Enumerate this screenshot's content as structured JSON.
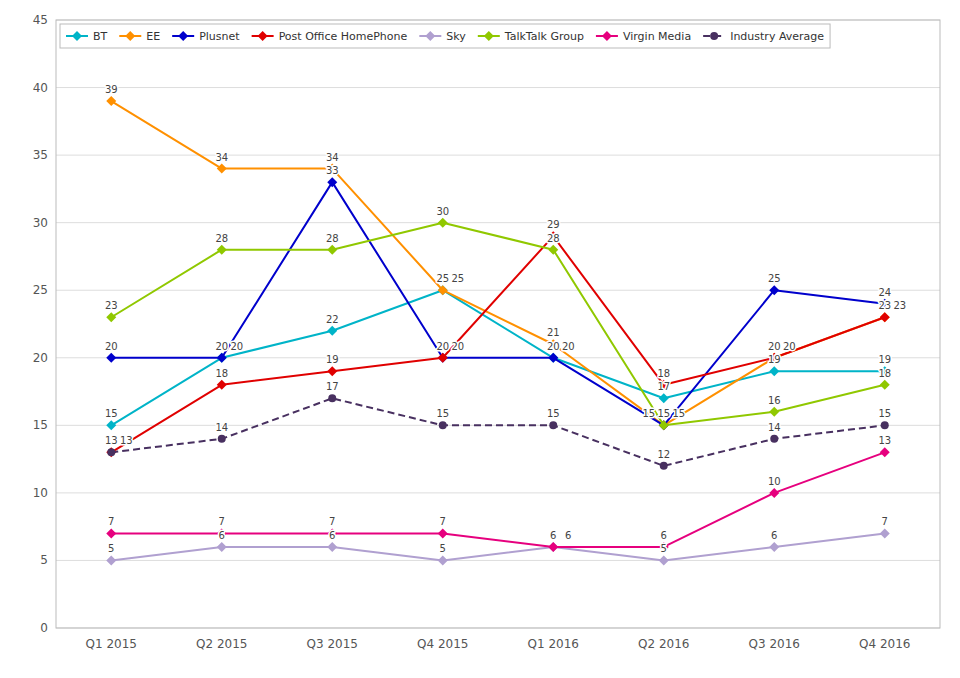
{
  "chart_data": {
    "type": "line",
    "categories": [
      "Q1 2015",
      "Q2 2015",
      "Q3 2015",
      "Q4 2015",
      "Q1 2016",
      "Q2 2016",
      "Q3 2016",
      "Q4 2016"
    ],
    "series": [
      {
        "name": "BT",
        "color": "#00b4c8",
        "marker": "diamond",
        "line_style": "solid",
        "values": [
          15,
          20,
          22,
          25,
          20,
          17,
          19,
          19
        ]
      },
      {
        "name": "EE",
        "color": "#ff9000",
        "marker": "diamond",
        "line_style": "solid",
        "values": [
          39,
          34,
          34,
          25,
          21,
          15,
          20,
          23
        ]
      },
      {
        "name": "Plusnet",
        "color": "#0000cc",
        "marker": "diamond",
        "line_style": "solid",
        "values": [
          20,
          20,
          33,
          20,
          20,
          15,
          25,
          24
        ]
      },
      {
        "name": "Post Office HomePhone",
        "color": "#e00000",
        "marker": "diamond",
        "line_style": "solid",
        "values": [
          13,
          18,
          19,
          20,
          29,
          18,
          20,
          23
        ]
      },
      {
        "name": "Sky",
        "color": "#b0a0d0",
        "marker": "diamond",
        "line_style": "solid",
        "values": [
          5,
          6,
          6,
          5,
          6,
          5,
          6,
          7
        ]
      },
      {
        "name": "TalkTalk Group",
        "color": "#90c800",
        "marker": "diamond",
        "line_style": "solid",
        "values": [
          23,
          28,
          28,
          30,
          28,
          15,
          16,
          18
        ]
      },
      {
        "name": "Virgin Media",
        "color": "#e6007e",
        "marker": "diamond",
        "line_style": "solid",
        "values": [
          7,
          7,
          7,
          7,
          6,
          6,
          10,
          13
        ]
      },
      {
        "name": "Industry Average",
        "color": "#483060",
        "marker": "circle",
        "line_style": "dashed",
        "values": [
          13,
          14,
          17,
          15,
          15,
          12,
          14,
          15
        ]
      }
    ],
    "ylim": [
      0,
      45
    ],
    "yticks": [
      0,
      5,
      10,
      15,
      20,
      25,
      30,
      35,
      40,
      45
    ],
    "grid": true,
    "legend": "upper left",
    "data_labels": true
  }
}
